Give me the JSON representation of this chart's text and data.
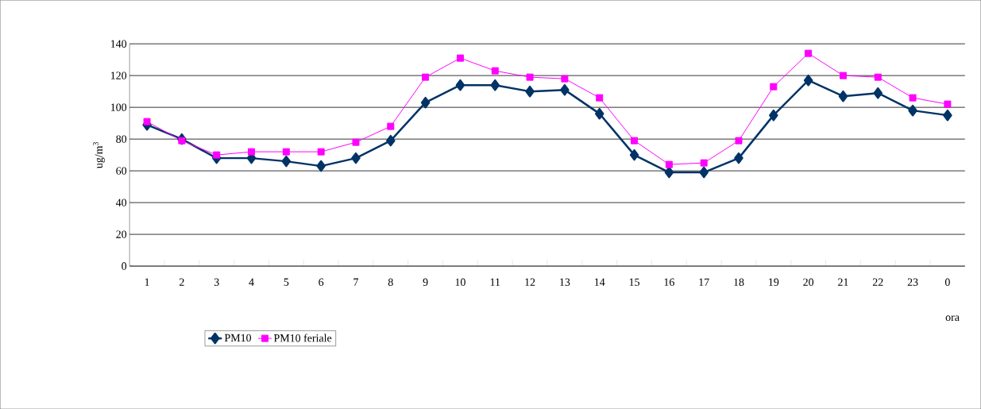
{
  "chart_data": {
    "type": "line",
    "categories": [
      "1",
      "2",
      "3",
      "4",
      "5",
      "6",
      "7",
      "8",
      "9",
      "10",
      "11",
      "12",
      "13",
      "14",
      "15",
      "16",
      "17",
      "18",
      "19",
      "20",
      "21",
      "22",
      "23",
      "0"
    ],
    "series": [
      {
        "name": "PM10",
        "color": "#003366",
        "marker": "diamond",
        "values": [
          89,
          80,
          68,
          68,
          66,
          63,
          68,
          79,
          103,
          114,
          114,
          110,
          111,
          96,
          70,
          59,
          59,
          68,
          95,
          117,
          107,
          109,
          98,
          95
        ]
      },
      {
        "name": "PM10 feriale",
        "color": "#ff00ff",
        "marker": "square",
        "values": [
          91,
          79,
          70,
          72,
          72,
          72,
          78,
          88,
          119,
          131,
          123,
          119,
          118,
          106,
          79,
          64,
          65,
          79,
          113,
          134,
          120,
          119,
          106,
          102
        ]
      }
    ],
    "xlabel": "ora",
    "ylabel": "ug/m$^{3}$",
    "ylim": [
      0,
      140
    ],
    "yticks": [
      0,
      20,
      40,
      60,
      80,
      100,
      120,
      140
    ],
    "grid": "y",
    "legend": "bottom",
    "line_style": "solid"
  }
}
